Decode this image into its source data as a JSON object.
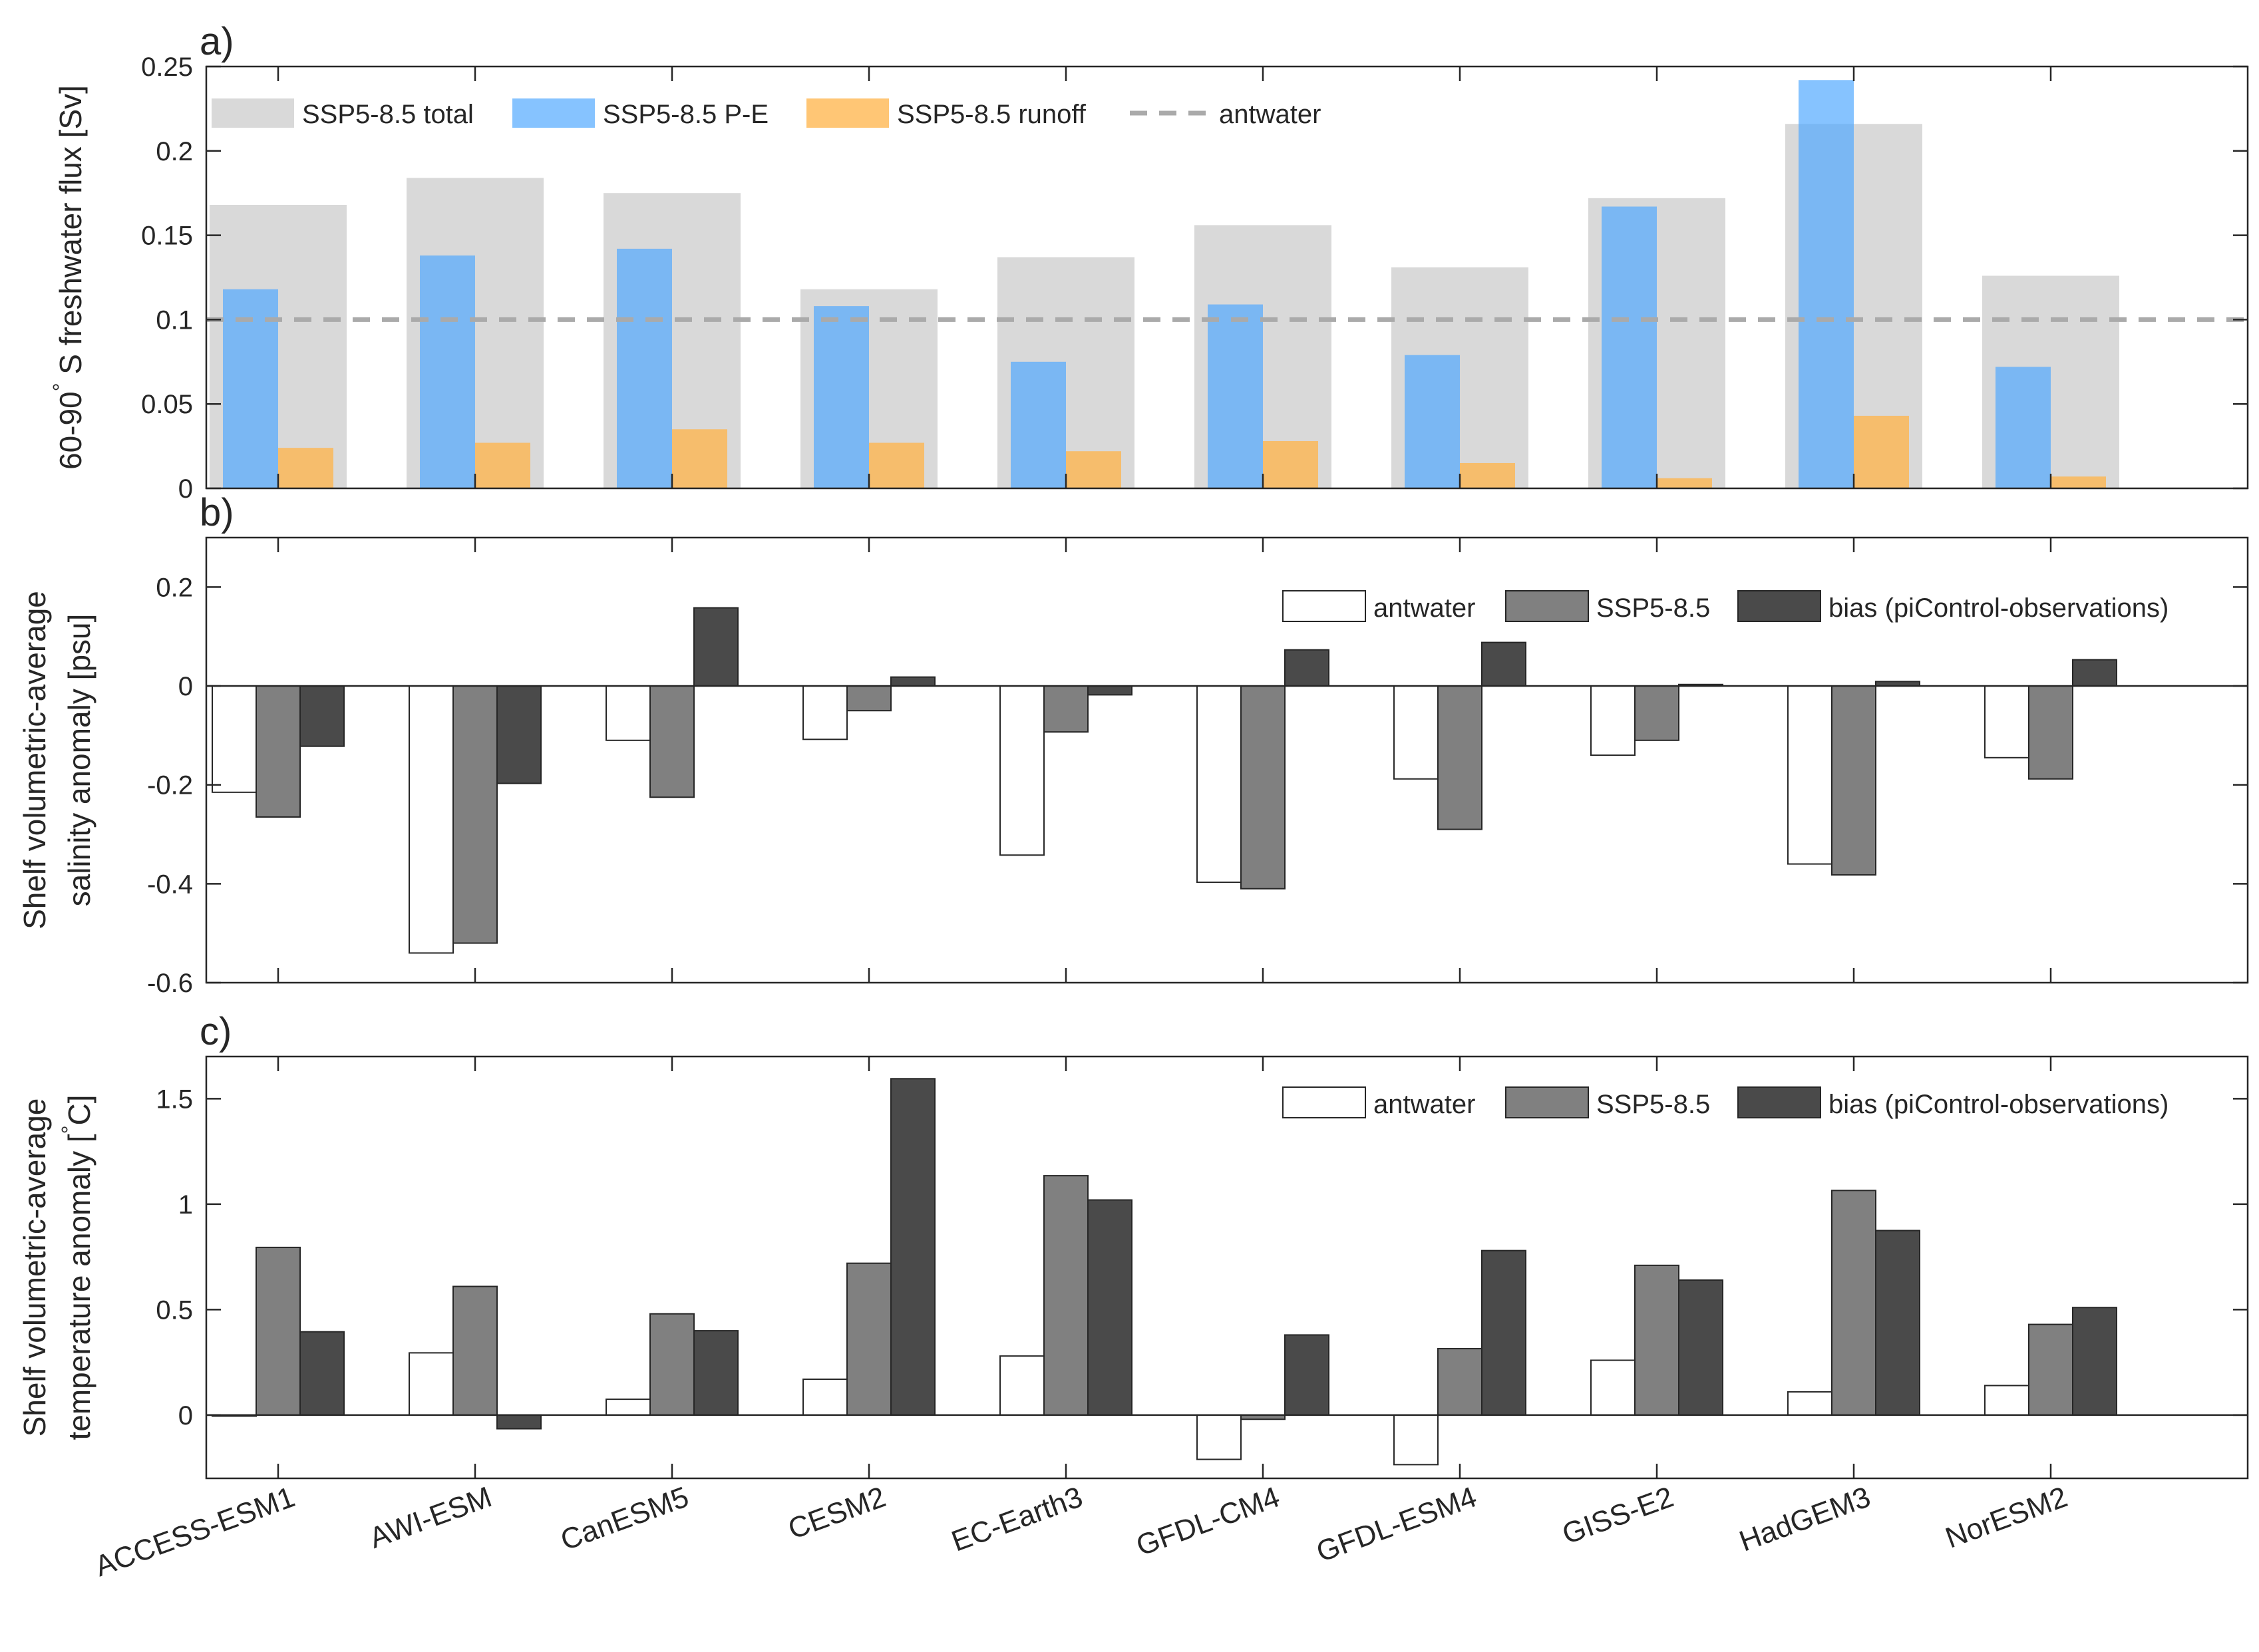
{
  "chart_data": [
    {
      "type": "bar",
      "panel_label": "a)",
      "title": "",
      "xlabel": "",
      "ylabel": "60-90°S freshwater flux [Sv]",
      "ylabel_parts": [
        "60-90",
        "°",
        " S freshwater flux [Sv]"
      ],
      "ylim": [
        0,
        0.25
      ],
      "yticks": [
        0,
        0.05,
        0.1,
        0.15,
        0.2,
        0.25
      ],
      "ytick_labels": [
        "0",
        "0.05",
        "0.1",
        "0.15",
        "0.2",
        "0.25"
      ],
      "categories": [
        "ACCESS-ESM1",
        "AWI-ESM",
        "CanESM5",
        "CESM2",
        "EC-Earth3",
        "GFDL-CM4",
        "GFDL-ESM4",
        "GISS-E2",
        "HadGEM3",
        "NorESM2"
      ],
      "series": [
        {
          "name": "SSP5-8.5 total",
          "color": "#d9d9d9",
          "values": [
            0.168,
            0.184,
            0.175,
            0.118,
            0.137,
            0.156,
            0.131,
            0.172,
            0.216,
            0.126
          ]
        },
        {
          "name": "SSP5-8.5 P-E",
          "color": "#4da6ff",
          "values": [
            0.118,
            0.138,
            0.142,
            0.108,
            0.075,
            0.109,
            0.079,
            0.167,
            0.242,
            0.072
          ]
        },
        {
          "name": "SSP5-8.5 runoff",
          "color": "#ffb347",
          "values": [
            0.024,
            0.027,
            0.035,
            0.027,
            0.022,
            0.028,
            0.015,
            0.006,
            0.043,
            0.007
          ]
        }
      ],
      "reference_line": {
        "name": "antwater",
        "value": 0.1,
        "color": "#aaaaaa"
      },
      "legend_position": "top-left"
    },
    {
      "type": "bar",
      "panel_label": "b)",
      "title": "",
      "xlabel": "",
      "ylabel": "Shelf volumetric-average salinity anomaly [psu]",
      "ylabel_lines": [
        "Shelf volumetric-average",
        "salinity anomaly [psu]"
      ],
      "ylim": [
        -0.6,
        0.3
      ],
      "yticks": [
        -0.6,
        -0.4,
        -0.2,
        0,
        0.2
      ],
      "ytick_labels": [
        "-0.6",
        "-0.4",
        "-0.2",
        "0",
        "0.2"
      ],
      "categories": [
        "ACCESS-ESM1",
        "AWI-ESM",
        "CanESM5",
        "CESM2",
        "EC-Earth3",
        "GFDL-CM4",
        "GFDL-ESM4",
        "GISS-E2",
        "HadGEM3",
        "NorESM2"
      ],
      "series": [
        {
          "name": "antwater",
          "color": "#ffffff",
          "values": [
            -0.215,
            -0.54,
            -0.11,
            -0.108,
            -0.342,
            -0.397,
            -0.188,
            -0.14,
            -0.36,
            -0.145
          ]
        },
        {
          "name": "SSP5-8.5",
          "color": "#808080",
          "values": [
            -0.265,
            -0.52,
            -0.225,
            -0.05,
            -0.093,
            -0.41,
            -0.29,
            -0.11,
            -0.382,
            -0.188
          ]
        },
        {
          "name": "bias (piControl-observations)",
          "color": "#4a4a4a",
          "values": [
            -0.122,
            -0.197,
            0.158,
            0.018,
            -0.018,
            0.073,
            0.088,
            0.003,
            0.009,
            0.053
          ]
        }
      ],
      "legend_position": "top-right"
    },
    {
      "type": "bar",
      "panel_label": "c)",
      "title": "",
      "xlabel": "",
      "ylabel": "Shelf volumetric-average temperature anomaly [°C]",
      "ylabel_lines": [
        "Shelf volumetric-average",
        "temperature anomaly [",
        "°",
        "C]"
      ],
      "ylim": [
        -0.3,
        1.7
      ],
      "yticks": [
        0,
        0.5,
        1,
        1.5
      ],
      "ytick_labels": [
        "0",
        "0.5",
        "1",
        "1.5"
      ],
      "categories": [
        "ACCESS-ESM1",
        "AWI-ESM",
        "CanESM5",
        "CESM2",
        "EC-Earth3",
        "GFDL-CM4",
        "GFDL-ESM4",
        "GISS-E2",
        "HadGEM3",
        "NorESM2"
      ],
      "series": [
        {
          "name": "antwater",
          "color": "#ffffff",
          "values": [
            -0.005,
            0.295,
            0.075,
            0.17,
            0.28,
            -0.21,
            -0.235,
            0.26,
            0.11,
            0.14
          ]
        },
        {
          "name": "SSP5-8.5",
          "color": "#808080",
          "values": [
            0.795,
            0.61,
            0.48,
            0.72,
            1.135,
            -0.02,
            0.315,
            0.71,
            1.065,
            0.43
          ]
        },
        {
          "name": "bias (piControl-observations)",
          "color": "#4a4a4a",
          "values": [
            0.395,
            -0.065,
            0.4,
            1.595,
            1.02,
            0.38,
            0.78,
            0.64,
            0.875,
            0.51
          ]
        }
      ],
      "legend_position": "top-right"
    }
  ]
}
